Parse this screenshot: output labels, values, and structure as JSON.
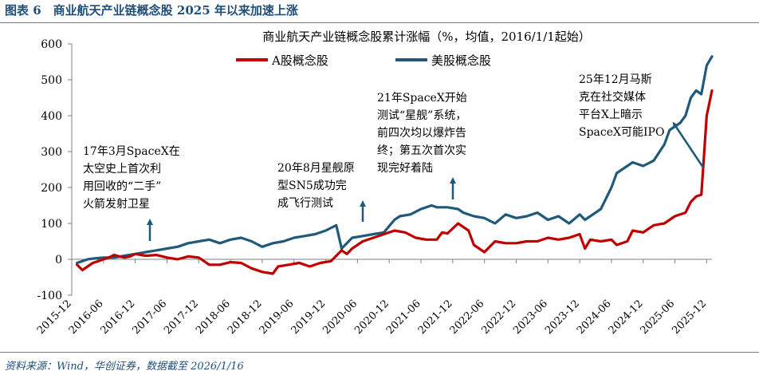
{
  "figure": {
    "title": "图表 6　商业航天产业链概念股 2025 年以来加速上涨",
    "source": "资料来源：Wind，华创证券，数据截至 2026/1/16"
  },
  "colors": {
    "series_a": "#c00000",
    "series_us": "#1f5a7a",
    "text": "#000000",
    "header": "#1f4e79"
  },
  "chart_data": {
    "type": "line",
    "title": "商业航天产业链概念股累计涨幅（%，均值，2016/1/1起始）",
    "xlabel": "",
    "ylabel": "",
    "ylim": [
      -100,
      600
    ],
    "yticks": [
      -100,
      0,
      100,
      200,
      300,
      400,
      500,
      600
    ],
    "xlim": [
      "2015-12",
      "2026-01"
    ],
    "xticks": [
      "2015-12",
      "2016-06",
      "2016-12",
      "2017-06",
      "2017-12",
      "2018-06",
      "2018-12",
      "2019-06",
      "2019-12",
      "2020-06",
      "2020-12",
      "2021-06",
      "2021-12",
      "2022-06",
      "2022-12",
      "2023-06",
      "2023-12",
      "2024-06",
      "2024-12",
      "2025-06",
      "2025-12"
    ],
    "grid": false,
    "legend": "top",
    "series": [
      {
        "name": "A股概念股",
        "color": "#c00000",
        "x": [
          "2016-01",
          "2016-02",
          "2016-03",
          "2016-04",
          "2016-05",
          "2016-06",
          "2016-07",
          "2016-08",
          "2016-09",
          "2016-10",
          "2016-11",
          "2016-12",
          "2017-02",
          "2017-04",
          "2017-06",
          "2017-08",
          "2017-10",
          "2017-12",
          "2018-02",
          "2018-04",
          "2018-06",
          "2018-08",
          "2018-10",
          "2018-12",
          "2019-02",
          "2019-03",
          "2019-05",
          "2019-07",
          "2019-09",
          "2019-11",
          "2020-01",
          "2020-03",
          "2020-04",
          "2020-05",
          "2020-07",
          "2020-09",
          "2020-11",
          "2021-01",
          "2021-03",
          "2021-05",
          "2021-07",
          "2021-09",
          "2021-10",
          "2021-11",
          "2022-01",
          "2022-03",
          "2022-04",
          "2022-06",
          "2022-08",
          "2022-10",
          "2022-12",
          "2023-02",
          "2023-04",
          "2023-06",
          "2023-08",
          "2023-10",
          "2023-12",
          "2024-01",
          "2024-02",
          "2024-04",
          "2024-06",
          "2024-07",
          "2024-09",
          "2024-10",
          "2024-12",
          "2025-02",
          "2025-04",
          "2025-06",
          "2025-08",
          "2025-09",
          "2025-10",
          "2025-11",
          "2025-12",
          "2026-01"
        ],
        "values": [
          -15,
          -30,
          -20,
          -10,
          -5,
          0,
          5,
          12,
          8,
          5,
          8,
          15,
          10,
          12,
          5,
          0,
          8,
          5,
          -15,
          -15,
          -8,
          -10,
          -25,
          -35,
          -40,
          -20,
          -15,
          -10,
          -20,
          -10,
          -5,
          25,
          15,
          30,
          50,
          60,
          70,
          80,
          75,
          60,
          55,
          55,
          75,
          72,
          100,
          80,
          40,
          20,
          50,
          45,
          45,
          50,
          50,
          60,
          55,
          60,
          70,
          30,
          55,
          50,
          55,
          40,
          50,
          80,
          75,
          95,
          100,
          120,
          130,
          160,
          175,
          180,
          400,
          470
        ]
      },
      {
        "name": "美股概念股",
        "color": "#1f5a7a",
        "x": [
          "2016-01",
          "2016-02",
          "2016-03",
          "2016-04",
          "2016-06",
          "2016-08",
          "2016-10",
          "2016-12",
          "2017-02",
          "2017-04",
          "2017-06",
          "2017-08",
          "2017-10",
          "2017-12",
          "2018-02",
          "2018-04",
          "2018-06",
          "2018-08",
          "2018-10",
          "2018-12",
          "2019-02",
          "2019-04",
          "2019-06",
          "2019-08",
          "2019-10",
          "2019-12",
          "2020-02",
          "2020-03",
          "2020-05",
          "2020-07",
          "2020-09",
          "2020-11",
          "2021-01",
          "2021-02",
          "2021-04",
          "2021-06",
          "2021-08",
          "2021-09",
          "2021-11",
          "2022-01",
          "2022-02",
          "2022-04",
          "2022-06",
          "2022-08",
          "2022-10",
          "2022-12",
          "2023-02",
          "2023-04",
          "2023-06",
          "2023-08",
          "2023-10",
          "2023-12",
          "2024-01",
          "2024-03",
          "2024-04",
          "2024-06",
          "2024-07",
          "2024-09",
          "2024-10",
          "2024-12",
          "2025-02",
          "2025-04",
          "2025-05",
          "2025-07",
          "2025-08",
          "2025-09",
          "2025-10",
          "2025-11",
          "2025-12",
          "2026-01"
        ],
        "values": [
          -10,
          -5,
          0,
          2,
          5,
          5,
          10,
          15,
          20,
          25,
          30,
          35,
          45,
          50,
          55,
          45,
          55,
          60,
          50,
          35,
          45,
          50,
          60,
          65,
          70,
          80,
          95,
          30,
          60,
          65,
          70,
          75,
          110,
          120,
          125,
          140,
          150,
          145,
          145,
          140,
          130,
          120,
          115,
          100,
          125,
          115,
          120,
          130,
          110,
          120,
          100,
          125,
          110,
          130,
          140,
          200,
          240,
          260,
          270,
          260,
          275,
          320,
          360,
          380,
          400,
          450,
          470,
          460,
          540,
          565
        ]
      }
    ],
    "annotations": [
      {
        "text": "17年3月SpaceX在\n太空史上首次利\n用回收的“二手”\n火箭发射卫星"
      },
      {
        "text": "20年8月星舰原\n型SN5成功完\n成飞行测试"
      },
      {
        "text": "21年SpaceX开始\n测试“星舰”系统，\n前四次均以爆炸告\n终；第五次首次实\n现完好着陆"
      },
      {
        "text": "25年12月马斯\n克在社交媒体\n平台X上暗示\nSpaceX可能IPO"
      }
    ]
  }
}
